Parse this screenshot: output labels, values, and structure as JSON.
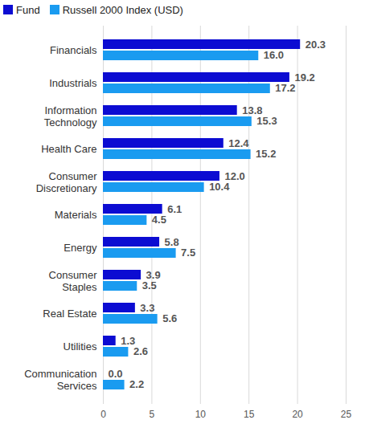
{
  "chart_data": {
    "type": "bar",
    "orientation": "horizontal",
    "categories": [
      "Financials",
      "Industrials",
      "Information Technology",
      "Health Care",
      "Consumer Discretionary",
      "Materials",
      "Energy",
      "Consumer Staples",
      "Real Estate",
      "Utilities",
      "Communication Services"
    ],
    "series": [
      {
        "name": "Fund",
        "color": "#0c0cd2",
        "values": [
          20.3,
          19.2,
          13.8,
          12.4,
          12.0,
          6.1,
          5.8,
          3.9,
          3.3,
          1.3,
          0.0
        ],
        "value_labels": [
          "20.3",
          "19.2",
          "13.8",
          "12.4",
          "12.0",
          "6.1",
          "5.8",
          "3.9",
          "3.3",
          "1.3",
          "0.0"
        ]
      },
      {
        "name": "Russell 2000 Index (USD)",
        "color": "#1a9bf0",
        "values": [
          16.0,
          17.2,
          15.3,
          15.2,
          10.4,
          4.5,
          7.5,
          3.5,
          5.6,
          2.6,
          2.2
        ],
        "value_labels": [
          "16.0",
          "17.2",
          "15.3",
          "15.2",
          "10.4",
          "4.5",
          "7.5",
          "3.5",
          "5.6",
          "2.6",
          "2.2"
        ]
      }
    ],
    "xlim": [
      0,
      25
    ],
    "xticks": [
      0,
      5,
      10,
      15,
      20,
      25
    ],
    "grid": true,
    "data_labels": true,
    "legend": "top"
  }
}
